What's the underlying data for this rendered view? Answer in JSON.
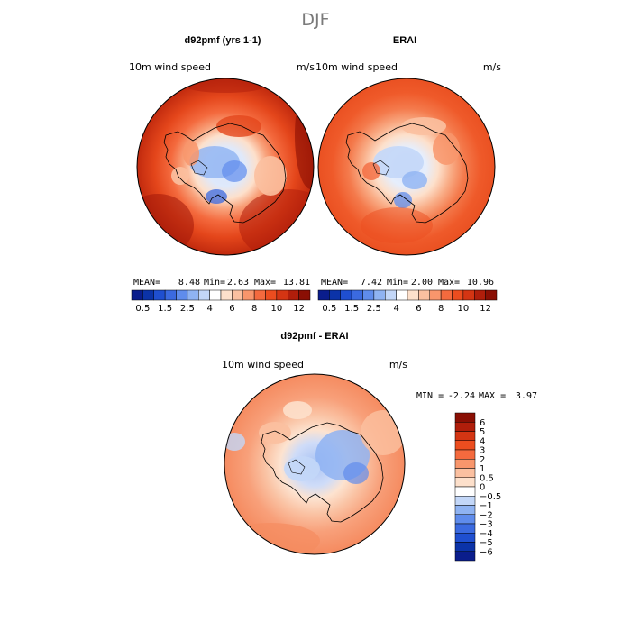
{
  "figure": {
    "title": "DJF",
    "bottom_title": "d92pmf - ERAI"
  },
  "chart_data": [
    {
      "type": "heatmap",
      "projection": "south polar stereographic",
      "title": "d92pmf (yrs 1-1)",
      "variable": "10m wind speed",
      "units": "m/s",
      "stats": {
        "mean_label": "MEAN=",
        "mean": "8.48",
        "min_label": "Min=",
        "min": "2.63",
        "max_label": "Max=",
        "max": "13.81"
      },
      "colorbar": {
        "orientation": "horizontal",
        "levels": [
          0.5,
          1,
          1.5,
          2,
          2.5,
          3,
          4,
          5,
          6,
          7,
          8,
          9,
          10,
          11,
          12
        ],
        "tick_labels": [
          "0.5",
          "1.5",
          "2.5",
          "4",
          "6",
          "8",
          "10",
          "12"
        ],
        "colors": [
          "#0a1d8c",
          "#0b33a8",
          "#1f4fd0",
          "#3b6ae0",
          "#5f8cec",
          "#8fb3f2",
          "#c3d7f8",
          "#ffffff",
          "#fde0cb",
          "#fbc0a0",
          "#f8966c",
          "#f46a3e",
          "#ec4d1f",
          "#d43513",
          "#b01e0b",
          "#8a0f04"
        ]
      }
    },
    {
      "type": "heatmap",
      "projection": "south polar stereographic",
      "title": "ERAI",
      "variable": "10m wind speed",
      "units": "m/s",
      "stats": {
        "mean_label": "MEAN=",
        "mean": "7.42",
        "min_label": "Min=",
        "min": "2.00",
        "max_label": "Max=",
        "max": "10.96"
      },
      "colorbar": {
        "orientation": "horizontal",
        "levels": [
          0.5,
          1,
          1.5,
          2,
          2.5,
          3,
          4,
          5,
          6,
          7,
          8,
          9,
          10,
          11,
          12
        ],
        "tick_labels": [
          "0.5",
          "1.5",
          "2.5",
          "4",
          "6",
          "8",
          "10",
          "12"
        ],
        "colors": [
          "#0a1d8c",
          "#0b33a8",
          "#1f4fd0",
          "#3b6ae0",
          "#5f8cec",
          "#8fb3f2",
          "#c3d7f8",
          "#ffffff",
          "#fde0cb",
          "#fbc0a0",
          "#f8966c",
          "#f46a3e",
          "#ec4d1f",
          "#d43513",
          "#b01e0b",
          "#8a0f04"
        ]
      }
    },
    {
      "type": "heatmap",
      "projection": "south polar stereographic",
      "title": "d92pmf - ERAI",
      "variable": "10m wind speed",
      "units": "m/s",
      "stats": {
        "min_label": "MIN =",
        "min": "-2.24",
        "max_label": "MAX =",
        "max": "3.97"
      },
      "colorbar": {
        "orientation": "vertical",
        "levels": [
          -6,
          -5,
          -4,
          -3,
          -2,
          -1,
          -0.5,
          0,
          0.5,
          1,
          2,
          3,
          4,
          5,
          6
        ],
        "tick_labels": [
          "6",
          "5",
          "4",
          "3",
          "2",
          "1",
          "0.5",
          "0",
          "−0.5",
          "−1",
          "−2",
          "−3",
          "−4",
          "−5",
          "−6"
        ],
        "colors": [
          "#8a0f04",
          "#b01e0b",
          "#d43513",
          "#ec4d1f",
          "#f46a3e",
          "#f8966c",
          "#fbc0a0",
          "#fde0cb",
          "#ffffff",
          "#c3d7f8",
          "#8fb3f2",
          "#5f8cec",
          "#3b6ae0",
          "#1f4fd0",
          "#0b33a8",
          "#0a1d8c"
        ]
      }
    }
  ]
}
